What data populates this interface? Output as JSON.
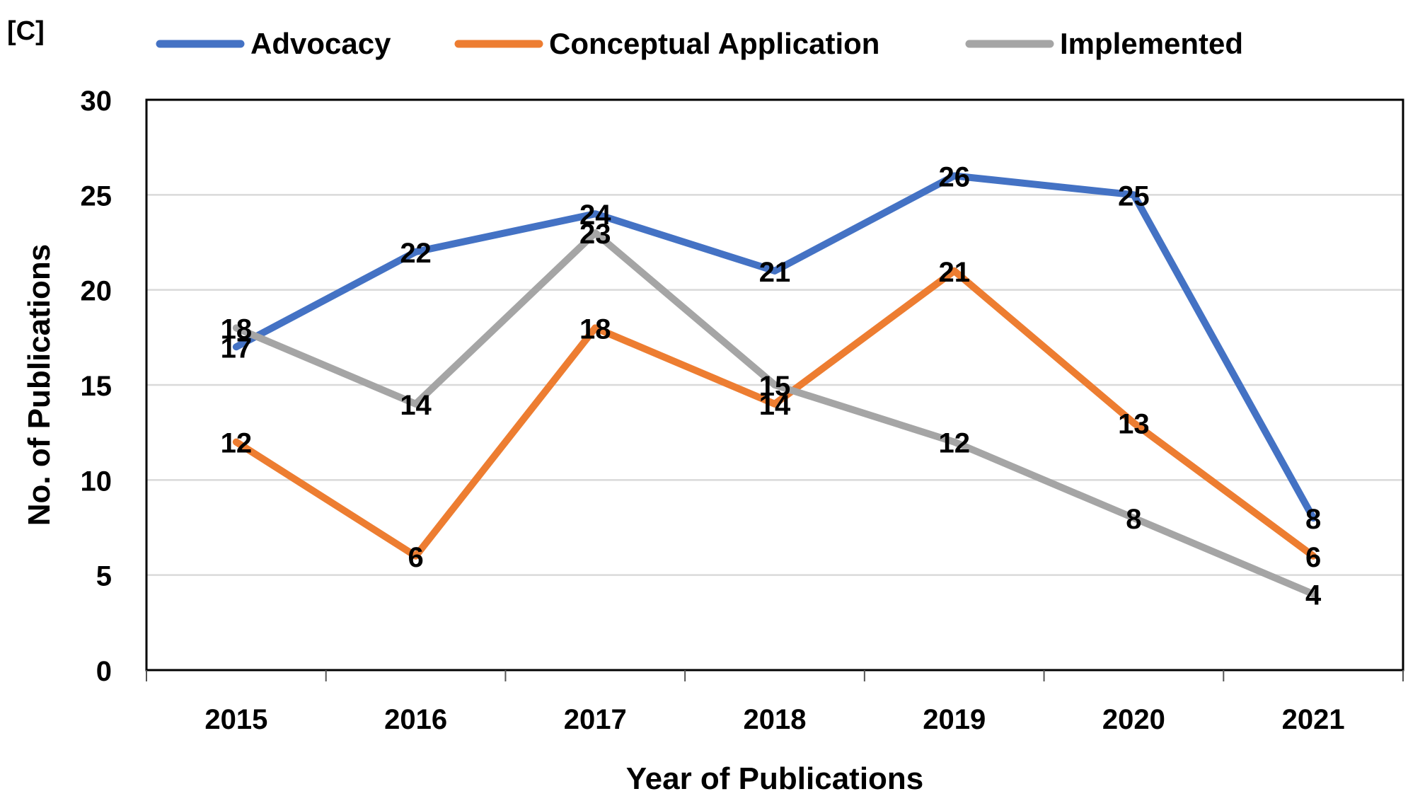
{
  "panel_label": "[C]",
  "chart_data": {
    "type": "line",
    "title": "",
    "xlabel": "Year of Publications",
    "ylabel": "No. of Publications",
    "categories": [
      "2015",
      "2016",
      "2017",
      "2018",
      "2019",
      "2020",
      "2021"
    ],
    "ylim": [
      0,
      30
    ],
    "yticks": [
      0,
      5,
      10,
      15,
      20,
      25,
      30
    ],
    "grid": "horizontal",
    "legend_position": "top",
    "series": [
      {
        "name": "Advocacy",
        "color": "#4472C4",
        "values": [
          17,
          22,
          24,
          21,
          26,
          25,
          8
        ]
      },
      {
        "name": "Conceptual Application",
        "color": "#ED7D31",
        "values": [
          12,
          6,
          18,
          14,
          21,
          13,
          6
        ]
      },
      {
        "name": "Implemented",
        "color": "#A5A5A5",
        "values": [
          18,
          14,
          23,
          15,
          12,
          8,
          4
        ]
      }
    ]
  }
}
